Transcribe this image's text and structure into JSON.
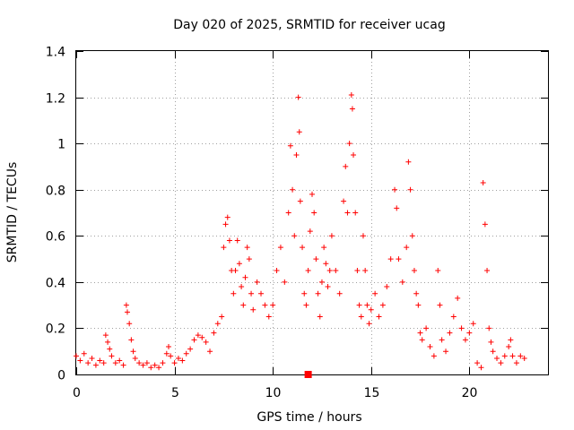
{
  "chart_data": {
    "type": "scatter",
    "title": "Day 020 of 2025, SRMTID for receiver ucag",
    "xlabel": "GPS time / hours",
    "ylabel": "SRMTID / TECUs",
    "xlim": [
      0,
      24
    ],
    "ylim": [
      0,
      1.4
    ],
    "x_ticks": [
      {
        "value": 0,
        "label": "0"
      },
      {
        "value": 5,
        "label": "5"
      },
      {
        "value": 10,
        "label": "10"
      },
      {
        "value": 15,
        "label": "15"
      },
      {
        "value": 20,
        "label": "20"
      }
    ],
    "y_ticks": [
      {
        "value": 0,
        "label": "0"
      },
      {
        "value": 0.2,
        "label": "0.2"
      },
      {
        "value": 0.4,
        "label": "0.4"
      },
      {
        "value": 0.6,
        "label": "0.6"
      },
      {
        "value": 0.8,
        "label": "0.8"
      },
      {
        "value": 1.0,
        "label": "1"
      },
      {
        "value": 1.2,
        "label": "1.2"
      },
      {
        "value": 1.4,
        "label": "1.4"
      }
    ],
    "grid": true,
    "marker": "plus",
    "color": "#ff0000",
    "series": [
      {
        "name": "SRMTID",
        "points": [
          [
            0.0,
            0.08
          ],
          [
            0.2,
            0.06
          ],
          [
            0.4,
            0.09
          ],
          [
            0.6,
            0.05
          ],
          [
            0.8,
            0.07
          ],
          [
            1.0,
            0.04
          ],
          [
            1.2,
            0.06
          ],
          [
            1.4,
            0.05
          ],
          [
            1.5,
            0.17
          ],
          [
            1.6,
            0.14
          ],
          [
            1.7,
            0.11
          ],
          [
            1.8,
            0.08
          ],
          [
            2.0,
            0.05
          ],
          [
            2.2,
            0.06
          ],
          [
            2.4,
            0.04
          ],
          [
            2.55,
            0.3
          ],
          [
            2.6,
            0.27
          ],
          [
            2.7,
            0.22
          ],
          [
            2.8,
            0.15
          ],
          [
            2.9,
            0.1
          ],
          [
            3.0,
            0.07
          ],
          [
            3.2,
            0.05
          ],
          [
            3.4,
            0.04
          ],
          [
            3.6,
            0.05
          ],
          [
            3.8,
            0.03
          ],
          [
            4.0,
            0.04
          ],
          [
            4.2,
            0.03
          ],
          [
            4.4,
            0.05
          ],
          [
            4.6,
            0.09
          ],
          [
            4.7,
            0.12
          ],
          [
            4.8,
            0.08
          ],
          [
            5.0,
            0.05
          ],
          [
            5.2,
            0.07
          ],
          [
            5.4,
            0.06
          ],
          [
            5.6,
            0.09
          ],
          [
            5.8,
            0.11
          ],
          [
            6.0,
            0.15
          ],
          [
            6.2,
            0.17
          ],
          [
            6.4,
            0.16
          ],
          [
            6.6,
            0.14
          ],
          [
            6.8,
            0.1
          ],
          [
            7.0,
            0.18
          ],
          [
            7.2,
            0.22
          ],
          [
            7.4,
            0.25
          ],
          [
            7.5,
            0.55
          ],
          [
            7.6,
            0.65
          ],
          [
            7.7,
            0.68
          ],
          [
            7.8,
            0.58
          ],
          [
            7.9,
            0.45
          ],
          [
            8.0,
            0.35
          ],
          [
            8.1,
            0.45
          ],
          [
            8.2,
            0.58
          ],
          [
            8.3,
            0.48
          ],
          [
            8.4,
            0.38
          ],
          [
            8.5,
            0.3
          ],
          [
            8.6,
            0.42
          ],
          [
            8.7,
            0.55
          ],
          [
            8.8,
            0.5
          ],
          [
            8.9,
            0.35
          ],
          [
            9.0,
            0.28
          ],
          [
            9.2,
            0.4
          ],
          [
            9.4,
            0.35
          ],
          [
            9.6,
            0.3
          ],
          [
            9.8,
            0.25
          ],
          [
            10.0,
            0.3
          ],
          [
            10.2,
            0.45
          ],
          [
            10.4,
            0.55
          ],
          [
            10.6,
            0.4
          ],
          [
            10.8,
            0.7
          ],
          [
            10.9,
            0.99
          ],
          [
            11.0,
            0.8
          ],
          [
            11.1,
            0.6
          ],
          [
            11.2,
            0.95
          ],
          [
            11.3,
            1.2
          ],
          [
            11.35,
            1.05
          ],
          [
            11.4,
            0.75
          ],
          [
            11.5,
            0.55
          ],
          [
            11.6,
            0.35
          ],
          [
            11.7,
            0.3
          ],
          [
            11.8,
            0.45
          ],
          [
            11.9,
            0.62
          ],
          [
            12.0,
            0.78
          ],
          [
            12.1,
            0.7
          ],
          [
            12.2,
            0.5
          ],
          [
            12.3,
            0.35
          ],
          [
            12.4,
            0.25
          ],
          [
            12.5,
            0.4
          ],
          [
            12.6,
            0.55
          ],
          [
            12.7,
            0.48
          ],
          [
            12.8,
            0.38
          ],
          [
            12.9,
            0.45
          ],
          [
            13.0,
            0.6
          ],
          [
            13.2,
            0.45
          ],
          [
            13.4,
            0.35
          ],
          [
            13.6,
            0.75
          ],
          [
            13.7,
            0.9
          ],
          [
            13.8,
            0.7
          ],
          [
            13.9,
            1.0
          ],
          [
            14.0,
            1.21
          ],
          [
            14.05,
            1.15
          ],
          [
            14.1,
            0.95
          ],
          [
            14.2,
            0.7
          ],
          [
            14.3,
            0.45
          ],
          [
            14.4,
            0.3
          ],
          [
            14.5,
            0.25
          ],
          [
            14.6,
            0.6
          ],
          [
            14.7,
            0.45
          ],
          [
            14.8,
            0.3
          ],
          [
            14.9,
            0.22
          ],
          [
            15.0,
            0.28
          ],
          [
            15.2,
            0.35
          ],
          [
            15.4,
            0.25
          ],
          [
            15.6,
            0.3
          ],
          [
            15.8,
            0.38
          ],
          [
            16.0,
            0.5
          ],
          [
            16.2,
            0.8
          ],
          [
            16.3,
            0.72
          ],
          [
            16.4,
            0.5
          ],
          [
            16.6,
            0.4
          ],
          [
            16.8,
            0.55
          ],
          [
            16.9,
            0.92
          ],
          [
            17.0,
            0.8
          ],
          [
            17.1,
            0.6
          ],
          [
            17.2,
            0.45
          ],
          [
            17.3,
            0.35
          ],
          [
            17.4,
            0.3
          ],
          [
            17.5,
            0.18
          ],
          [
            17.6,
            0.15
          ],
          [
            17.8,
            0.2
          ],
          [
            18.0,
            0.12
          ],
          [
            18.2,
            0.08
          ],
          [
            18.4,
            0.45
          ],
          [
            18.5,
            0.3
          ],
          [
            18.6,
            0.15
          ],
          [
            18.8,
            0.1
          ],
          [
            19.0,
            0.18
          ],
          [
            19.2,
            0.25
          ],
          [
            19.4,
            0.33
          ],
          [
            19.6,
            0.2
          ],
          [
            19.8,
            0.15
          ],
          [
            20.0,
            0.18
          ],
          [
            20.2,
            0.22
          ],
          [
            20.4,
            0.05
          ],
          [
            20.6,
            0.03
          ],
          [
            20.7,
            0.83
          ],
          [
            20.8,
            0.65
          ],
          [
            20.9,
            0.45
          ],
          [
            21.0,
            0.2
          ],
          [
            21.1,
            0.14
          ],
          [
            21.2,
            0.1
          ],
          [
            21.4,
            0.07
          ],
          [
            21.6,
            0.05
          ],
          [
            21.8,
            0.08
          ],
          [
            22.0,
            0.12
          ],
          [
            22.1,
            0.15
          ],
          [
            22.2,
            0.08
          ],
          [
            22.4,
            0.05
          ],
          [
            22.6,
            0.08
          ],
          [
            22.8,
            0.07
          ]
        ]
      }
    ],
    "marker_points": [
      [
        11.8,
        0.0
      ]
    ]
  }
}
